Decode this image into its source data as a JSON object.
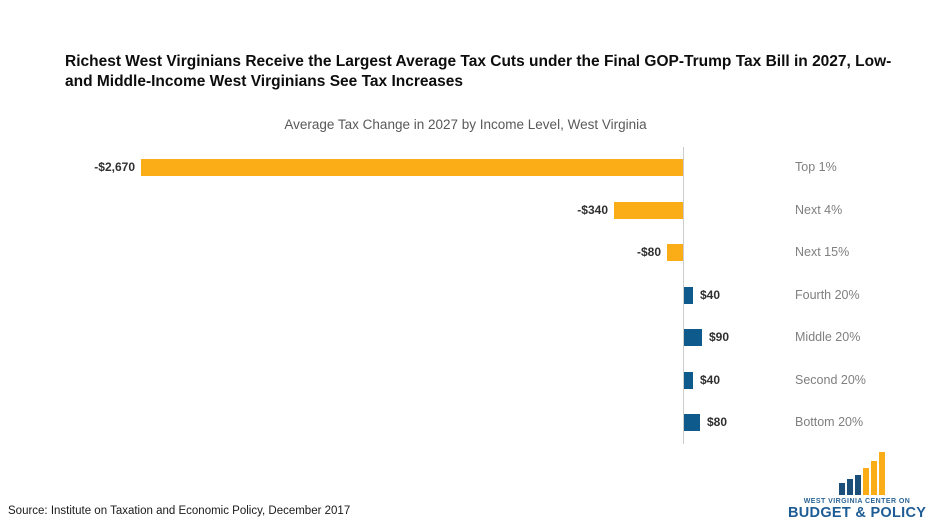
{
  "header": {
    "title": "Richest West Virginians Receive the Largest Average Tax Cuts under the Final GOP-Trump Tax Bill in 2027, Low- and Middle-Income West Virginians See Tax Increases",
    "subtitle": "Average Tax Change in 2027 by Income Level, West Virginia"
  },
  "chart_data": {
    "type": "bar",
    "orientation": "horizontal",
    "title": "Average Tax Change in 2027 by Income Level, West Virginia",
    "xlabel": "",
    "ylabel": "",
    "categories": [
      "Top 1%",
      "Next 4%",
      "Next 15%",
      "Fourth 20%",
      "Middle 20%",
      "Second 20%",
      "Bottom 20%"
    ],
    "values": [
      -2670,
      -340,
      -80,
      40,
      90,
      40,
      80
    ],
    "value_labels": [
      "-$2,670",
      "-$340",
      "-$80",
      "$40",
      "$90",
      "$40",
      "$80"
    ],
    "xlim": [
      -2750,
      950
    ],
    "grid": false,
    "legend": "none",
    "colors": {
      "negative_bar": "#FBAD18",
      "positive_bar": "#0E5A8C",
      "axis_line": "#CCCCCC",
      "category_label": "#7F7F7F",
      "value_label": "#303030"
    }
  },
  "footer": {
    "source": "Source: Institute on Taxation and Economic Policy, December 2017"
  },
  "logo": {
    "line1": "WEST VIRGINIA CENTER ON",
    "line2": "BUDGET & POLICY",
    "text_color": "#1E5C95",
    "bar_colors": [
      "#1B4E79",
      "#1B4E79",
      "#1B4E79",
      "#FBAD18",
      "#FBAD18",
      "#FBAD18"
    ]
  }
}
